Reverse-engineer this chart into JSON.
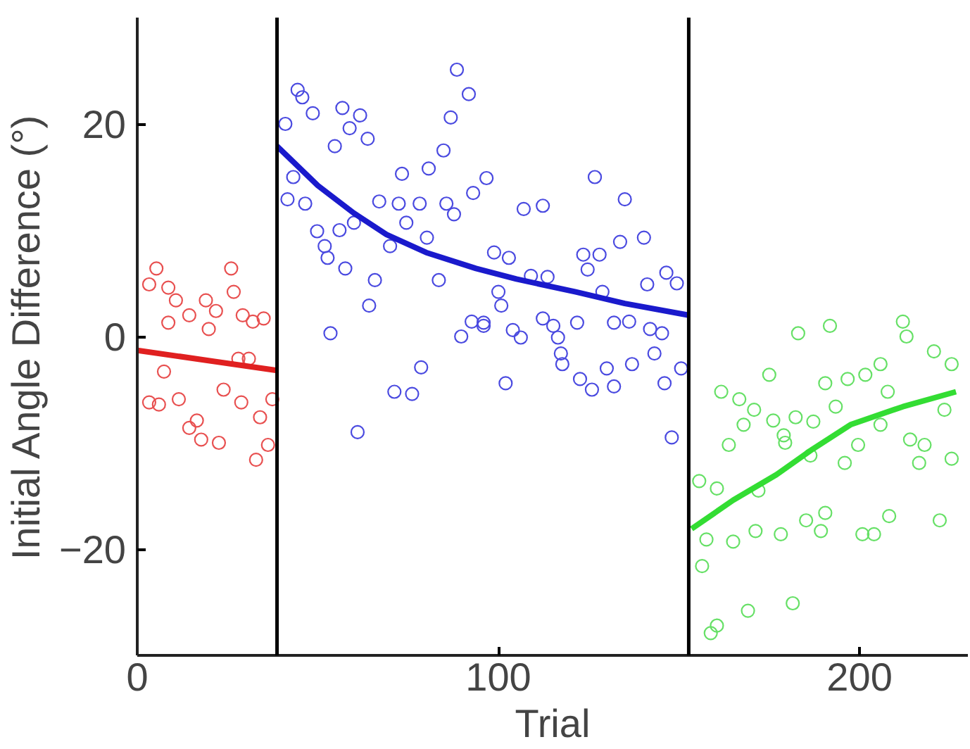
{
  "chart_data": {
    "type": "scatter",
    "xlabel": "Trial",
    "ylabel": "Initial Angle Difference (°)",
    "xlim": [
      0,
      230
    ],
    "ylim": [
      -30,
      30
    ],
    "xticks": [
      0,
      100,
      200
    ],
    "yticks": [
      -20,
      0,
      20
    ],
    "line_style": "solid",
    "ref_lines": [
      {
        "axis": "x",
        "value": 38.7,
        "color": "#000000"
      },
      {
        "axis": "x",
        "value": 152.7,
        "color": "#000000"
      }
    ],
    "series": [
      {
        "marker": "circle",
        "color": "#e85050",
        "x": [
          5.3,
          3.3,
          8.6,
          10.7,
          26,
          26.7,
          19,
          21.8,
          14.4,
          8.6,
          19.8,
          29.2,
          32,
          35,
          7.4,
          28,
          30.9,
          3.3,
          6,
          11.5,
          23.9,
          28.8,
          34,
          14.4,
          16.5,
          17.7,
          22.6,
          36.2,
          32.9,
          37.4
        ],
        "values": [
          6.4,
          4.9,
          4.6,
          3.4,
          6.4,
          4.2,
          3.4,
          2.4,
          2,
          1.3,
          0.7,
          2,
          1.4,
          1.7,
          -3.3,
          -2.1,
          -2.1,
          -6.2,
          -6.4,
          -5.9,
          -5,
          -6.2,
          -7.6,
          -8.6,
          -7.9,
          -9.7,
          -10,
          -10.2,
          -11.6,
          -5.9
        ]
      },
      {
        "marker": "circle",
        "color": "#4a4ae0",
        "x": [
          44.4,
          45.7,
          48.6,
          56.8,
          61.7,
          58.8,
          63.8,
          54.7,
          41,
          88.5,
          91.8,
          86.8,
          43.2,
          41.6,
          46.5,
          73.3,
          80.7,
          84.8,
          67,
          72.4,
          78.2,
          85.6,
          87.7,
          93,
          49.8,
          51.9,
          52.7,
          56,
          60,
          74.5,
          70,
          80.2,
          57.6,
          65.8,
          83.5,
          64.2,
          53.5,
          89.7,
          92.6,
          95.9,
          78.6,
          71.2,
          76.1,
          61,
          96.7,
          126.7,
          135,
          107,
          112.3,
          98.8,
          102.9,
          123.5,
          128,
          133.7,
          140.3,
          109,
          113.6,
          124.7,
          146.5,
          149.4,
          141.2,
          100,
          100.8,
          128.8,
          95.9,
          104,
          106.2,
          112.3,
          115.2,
          116.5,
          121.8,
          132,
          136.2,
          142,
          145.3,
          143.2,
          117.3,
          117.7,
          130,
          137,
          122.6,
          125.9,
          132,
          146,
          102,
          150.6,
          148
        ],
        "values": [
          23.2,
          22.5,
          21,
          21.5,
          20.8,
          19.6,
          18.6,
          17.9,
          20,
          25.1,
          22.8,
          20.6,
          15,
          12.9,
          12.5,
          15.3,
          15.8,
          17.5,
          12.7,
          12.5,
          12.5,
          12.5,
          11.5,
          13.5,
          9.9,
          8.5,
          7.4,
          10,
          10.7,
          10.7,
          8.5,
          9.3,
          6.4,
          5.3,
          5.3,
          2.9,
          0.3,
          0,
          1.4,
          1,
          -2.9,
          -5.2,
          -5.4,
          -9,
          14.9,
          15,
          12.9,
          12,
          12.3,
          7.9,
          7.4,
          7.7,
          7.7,
          8.9,
          9.3,
          5.7,
          5.6,
          6.3,
          6,
          5,
          4.9,
          4.2,
          2.9,
          4.2,
          1.3,
          0.6,
          -0.1,
          1.7,
          1,
          -0.1,
          1.3,
          1.3,
          1.4,
          0.7,
          0.3,
          -1.6,
          -1.6,
          -2.6,
          -3,
          -2.6,
          -4,
          -5,
          -4.7,
          -4.4,
          -4.4,
          -3,
          -9.5
        ]
      },
      {
        "marker": "circle",
        "color": "#66e066",
        "x": [
          191.8,
          183,
          212,
          213,
          220.6,
          225.5,
          175,
          190.5,
          196.7,
          201.6,
          205.8,
          161.7,
          166.7,
          193.4,
          207.8,
          170.8,
          176.1,
          182.3,
          187.2,
          167.9,
          179,
          205.8,
          223.5,
          214,
          218,
          163.8,
          179.4,
          199.6,
          216.5,
          225.5,
          195.9,
          186.4,
          155.6,
          160.5,
          172,
          157.6,
          165,
          171.2,
          178.2,
          185.2,
          190.5,
          189.3,
          200.8,
          204,
          208.2,
          222.2,
          156.4,
          181.5,
          169.1,
          160.5,
          158.8
        ],
        "values": [
          1,
          0.3,
          1.4,
          0,
          -1.4,
          -2.6,
          -3.6,
          -4.4,
          -4,
          -3.6,
          -2.6,
          -5.2,
          -5.9,
          -6.6,
          -5.2,
          -6.9,
          -7.9,
          -7.6,
          -8,
          -8.3,
          -9.3,
          -8.3,
          -6.9,
          -9.7,
          -10.2,
          -10.2,
          -10,
          -10.2,
          -11.9,
          -11.5,
          -11.9,
          -11.2,
          -13.6,
          -14.3,
          -14.5,
          -19.1,
          -19.3,
          -18.3,
          -18.6,
          -17.3,
          -16.6,
          -18.3,
          -18.6,
          -18.6,
          -16.9,
          -17.3,
          -21.6,
          -25.1,
          -25.8,
          -27.2,
          -27.9
        ]
      },
      {
        "type": "line",
        "marker": "none",
        "color": "#e02020",
        "x": [
          0,
          38.7
        ],
        "values": [
          -1.3,
          -3.2
        ]
      },
      {
        "type": "line",
        "marker": "none",
        "color": "#1a1acc",
        "x": [
          38.7,
          50,
          60,
          69,
          80,
          93.8,
          105,
          121.4,
          135,
          152.7
        ],
        "values": [
          17.9,
          14.2,
          11.6,
          9.6,
          7.9,
          6.4,
          5.4,
          4.2,
          3.1,
          2.0
        ]
      },
      {
        "type": "line",
        "marker": "none",
        "color": "#33dd33",
        "x": [
          153.5,
          165,
          177,
          187,
          197.5,
          212,
          226.7
        ],
        "values": [
          -18.1,
          -15.4,
          -13,
          -10.6,
          -8.3,
          -6.6,
          -5.2
        ]
      }
    ]
  }
}
